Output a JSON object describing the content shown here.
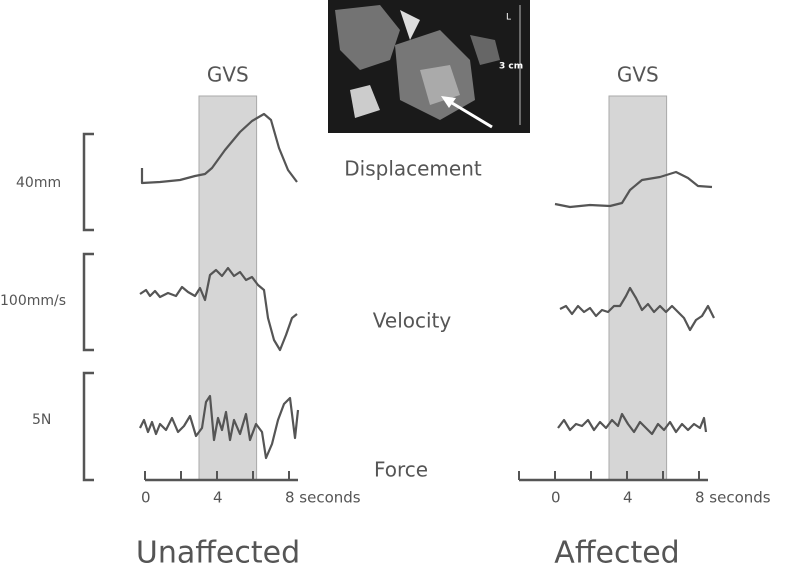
{
  "image": {
    "labels": [
      "L",
      "3 cm"
    ]
  },
  "scale_bars": [
    "40mm",
    "100mm/s",
    "5N"
  ],
  "signals": [
    "Displacement",
    "Velocity",
    "Force"
  ],
  "panels": [
    {
      "title": "Unaffected",
      "stimulus": "GVS",
      "xlim": [
        0,
        8.5
      ],
      "xticks": [
        0,
        4,
        {
          "value": 8,
          "label": "8 seconds"
        }
      ],
      "minor_xticks": [
        2,
        6
      ],
      "gvs_window": [
        3,
        6.2
      ]
    },
    {
      "title": "Affected",
      "stimulus": "GVS",
      "xlim": [
        -2,
        8.5
      ],
      "xticks": [
        0,
        4,
        {
          "value": 8,
          "label": "8 seconds"
        }
      ],
      "minor_xticks": [
        -2,
        2,
        6
      ],
      "gvs_window": [
        3,
        6.2
      ]
    }
  ]
}
